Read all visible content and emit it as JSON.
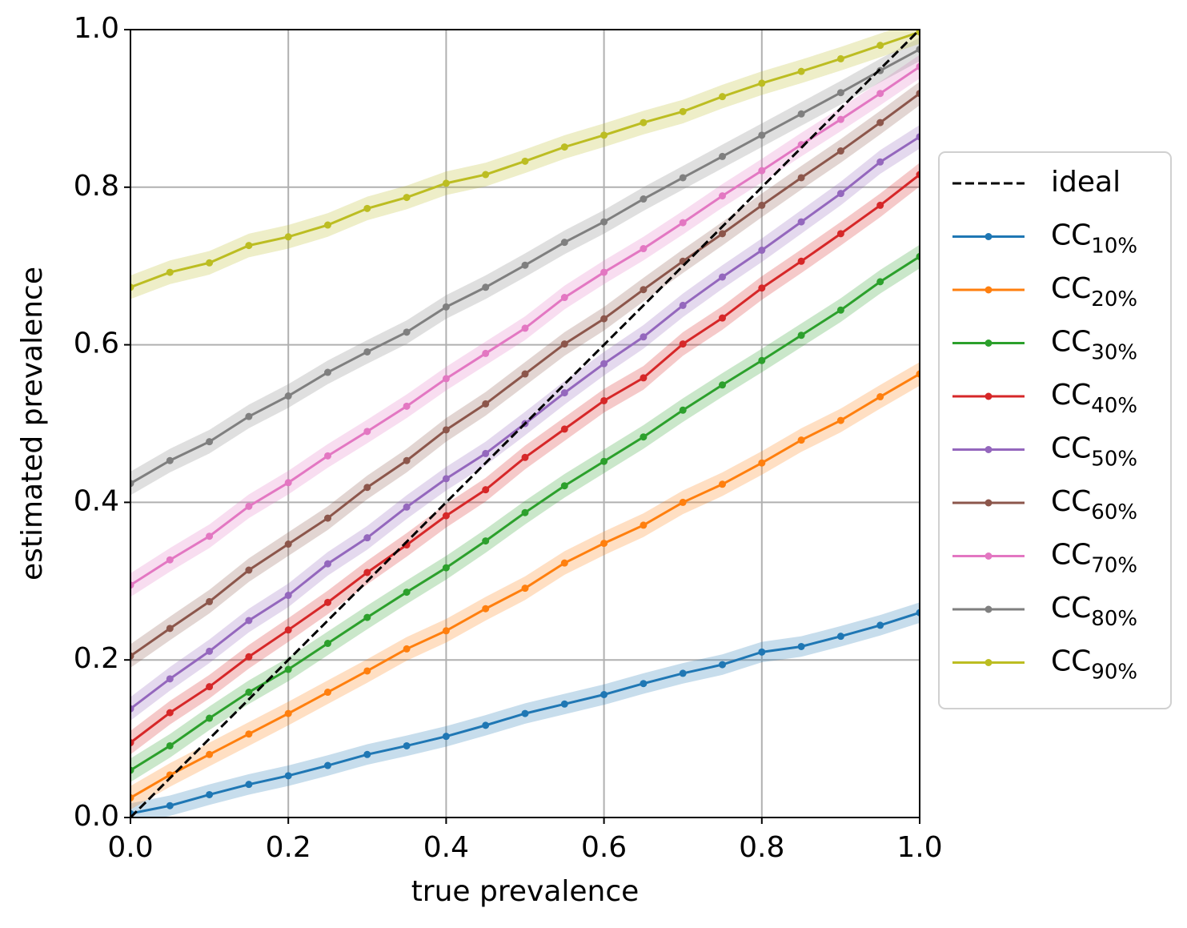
{
  "chart_data": {
    "type": "line",
    "xlabel": "true prevalence",
    "ylabel": "estimated prevalence",
    "x": [
      0,
      0.05,
      0.1,
      0.15,
      0.2,
      0.25,
      0.3,
      0.35,
      0.4,
      0.45,
      0.5,
      0.55,
      0.6,
      0.65,
      0.7,
      0.75,
      0.8,
      0.85,
      0.9,
      0.95,
      1
    ],
    "xlim": [
      0,
      1
    ],
    "ylim": [
      0,
      1
    ],
    "xticks": [
      {
        "value": 0,
        "label": "0.0"
      },
      0.2,
      0.4,
      0.6,
      0.8,
      {
        "value": 1,
        "label": "1.0"
      }
    ],
    "yticks": [
      {
        "value": 0,
        "label": "0.0"
      },
      0.2,
      0.4,
      0.6,
      0.8,
      {
        "value": 1,
        "label": "1.0"
      }
    ],
    "grid": true,
    "legend": "right",
    "ideal": {
      "name": "ideal",
      "color": "#000000",
      "style": "dashed",
      "x": [
        0,
        1
      ],
      "values": [
        0,
        1
      ]
    },
    "series": [
      {
        "name": "CC",
        "subscript": "10%",
        "color": "#1f77b4",
        "error": 0.013,
        "values": [
          0.005,
          0.015,
          0.029,
          0.042,
          0.053,
          0.066,
          0.08,
          0.091,
          0.103,
          0.117,
          0.132,
          0.144,
          0.156,
          0.17,
          0.183,
          0.194,
          0.21,
          0.217,
          0.23,
          0.244,
          0.26
        ]
      },
      {
        "name": "CC",
        "subscript": "20%",
        "color": "#ff7f0e",
        "error": 0.015,
        "values": [
          0.025,
          0.054,
          0.08,
          0.106,
          0.132,
          0.159,
          0.186,
          0.214,
          0.237,
          0.265,
          0.291,
          0.323,
          0.348,
          0.371,
          0.4,
          0.423,
          0.45,
          0.479,
          0.504,
          0.534,
          0.563
        ]
      },
      {
        "name": "CC",
        "subscript": "30%",
        "color": "#2ca02c",
        "error": 0.015,
        "values": [
          0.06,
          0.091,
          0.126,
          0.159,
          0.188,
          0.221,
          0.254,
          0.286,
          0.317,
          0.351,
          0.387,
          0.421,
          0.452,
          0.483,
          0.517,
          0.549,
          0.58,
          0.612,
          0.644,
          0.68,
          0.712
        ]
      },
      {
        "name": "CC",
        "subscript": "40%",
        "color": "#d62728",
        "error": 0.015,
        "values": [
          0.095,
          0.133,
          0.166,
          0.204,
          0.238,
          0.273,
          0.311,
          0.346,
          0.383,
          0.416,
          0.457,
          0.493,
          0.529,
          0.558,
          0.601,
          0.634,
          0.672,
          0.706,
          0.741,
          0.777,
          0.816
        ]
      },
      {
        "name": "CC",
        "subscript": "50%",
        "color": "#9467bd",
        "error": 0.015,
        "values": [
          0.138,
          0.176,
          0.211,
          0.25,
          0.282,
          0.322,
          0.355,
          0.394,
          0.43,
          0.462,
          0.5,
          0.539,
          0.576,
          0.61,
          0.65,
          0.686,
          0.72,
          0.756,
          0.792,
          0.832,
          0.864
        ]
      },
      {
        "name": "CC",
        "subscript": "60%",
        "color": "#8c564b",
        "error": 0.015,
        "values": [
          0.205,
          0.24,
          0.274,
          0.314,
          0.347,
          0.38,
          0.419,
          0.453,
          0.492,
          0.525,
          0.563,
          0.601,
          0.633,
          0.67,
          0.706,
          0.741,
          0.777,
          0.812,
          0.846,
          0.882,
          0.919
        ]
      },
      {
        "name": "CC",
        "subscript": "70%",
        "color": "#e377c2",
        "error": 0.015,
        "values": [
          0.295,
          0.327,
          0.357,
          0.395,
          0.425,
          0.459,
          0.49,
          0.522,
          0.557,
          0.589,
          0.621,
          0.66,
          0.692,
          0.722,
          0.755,
          0.789,
          0.821,
          0.854,
          0.886,
          0.919,
          0.953
        ]
      },
      {
        "name": "CC",
        "subscript": "80%",
        "color": "#7f7f7f",
        "error": 0.015,
        "values": [
          0.424,
          0.453,
          0.477,
          0.509,
          0.535,
          0.565,
          0.591,
          0.616,
          0.648,
          0.673,
          0.701,
          0.73,
          0.756,
          0.785,
          0.812,
          0.839,
          0.866,
          0.893,
          0.92,
          0.948,
          0.975
        ]
      },
      {
        "name": "CC",
        "subscript": "90%",
        "color": "#bcbd22",
        "error": 0.015,
        "values": [
          0.673,
          0.692,
          0.704,
          0.726,
          0.737,
          0.752,
          0.773,
          0.787,
          0.805,
          0.816,
          0.833,
          0.851,
          0.866,
          0.882,
          0.896,
          0.915,
          0.932,
          0.947,
          0.963,
          0.98,
          0.997
        ]
      }
    ]
  }
}
